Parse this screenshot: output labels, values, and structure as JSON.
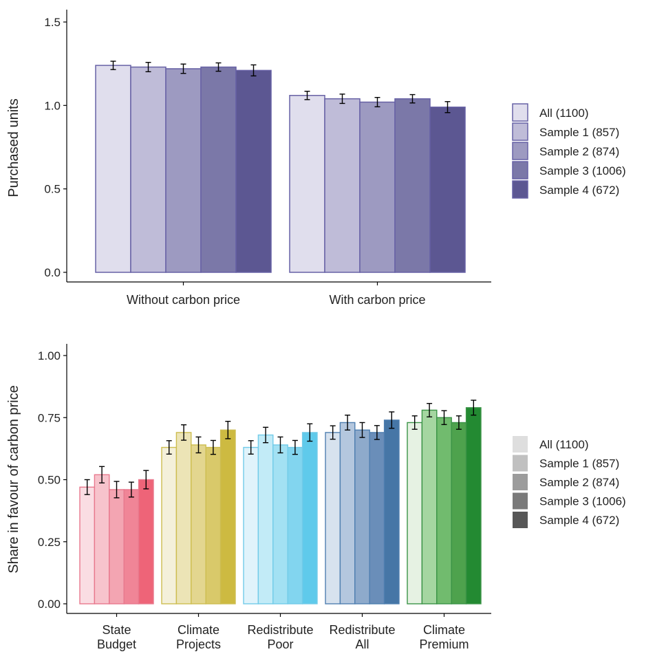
{
  "chart_data": [
    {
      "type": "bar",
      "title": "",
      "xlabel": "",
      "ylabel": "Purchased units",
      "ylim": [
        0,
        1.5
      ],
      "yticks": [
        "0.0",
        "0.5",
        "1.0",
        "1.5"
      ],
      "grid": false,
      "legend_position": "right",
      "categories": [
        "Without carbon price",
        "With carbon price"
      ],
      "series": [
        {
          "name": "All (1100)",
          "values": [
            1.24,
            1.06
          ],
          "error": [
            0.025,
            0.025
          ]
        },
        {
          "name": "Sample 1 (857)",
          "values": [
            1.23,
            1.04
          ],
          "error": [
            0.028,
            0.028
          ]
        },
        {
          "name": "Sample 2 (874)",
          "values": [
            1.22,
            1.02
          ],
          "error": [
            0.028,
            0.028
          ]
        },
        {
          "name": "Sample 3 (1006)",
          "values": [
            1.23,
            1.04
          ],
          "error": [
            0.025,
            0.025
          ]
        },
        {
          "name": "Sample 4 (672)",
          "values": [
            1.21,
            0.99
          ],
          "error": [
            0.033,
            0.033
          ]
        }
      ],
      "colors": {
        "fills": [
          "#e0deed",
          "#bfbcd8",
          "#9d9ac1",
          "#7b78a8",
          "#5c5792"
        ],
        "stroke": "#6761a5"
      }
    },
    {
      "type": "bar",
      "title": "",
      "xlabel": "",
      "ylabel": "Share in favour of carbon price",
      "ylim": [
        0,
        1.0
      ],
      "yticks": [
        "0.00",
        "0.25",
        "0.50",
        "0.75",
        "1.00"
      ],
      "grid": false,
      "legend_position": "right",
      "categories": [
        "State Budget",
        "Climate Projects",
        "Redistribute Poor",
        "Redistribute All",
        "Climate Premium"
      ],
      "category_lines": [
        [
          "State",
          "Budget"
        ],
        [
          "Climate",
          "Projects"
        ],
        [
          "Redistribute",
          "Poor"
        ],
        [
          "Redistribute",
          "All"
        ],
        [
          "Climate",
          "Premium"
        ]
      ],
      "series": [
        {
          "name": "All (1100)",
          "values": [
            0.47,
            0.63,
            0.63,
            0.69,
            0.73
          ],
          "error": [
            0.03,
            0.027,
            0.027,
            0.027,
            0.027
          ]
        },
        {
          "name": "Sample 1 (857)",
          "values": [
            0.52,
            0.69,
            0.68,
            0.73,
            0.78
          ],
          "error": [
            0.033,
            0.031,
            0.031,
            0.03,
            0.027
          ]
        },
        {
          "name": "Sample 2 (874)",
          "values": [
            0.46,
            0.64,
            0.64,
            0.7,
            0.75
          ],
          "error": [
            0.033,
            0.032,
            0.032,
            0.03,
            0.028
          ]
        },
        {
          "name": "Sample 3 (1006)",
          "values": [
            0.46,
            0.63,
            0.63,
            0.69,
            0.73
          ],
          "error": [
            0.03,
            0.028,
            0.028,
            0.028,
            0.027
          ]
        },
        {
          "name": "Sample 4 (672)",
          "values": [
            0.5,
            0.7,
            0.69,
            0.74,
            0.79
          ],
          "error": [
            0.037,
            0.035,
            0.035,
            0.033,
            0.03
          ]
        }
      ],
      "colors": {
        "group_fills": [
          [
            "#fadde3",
            "#f7c3cc",
            "#f3a5b2",
            "#f08597",
            "#ee6478"
          ],
          [
            "#f4f0da",
            "#ece4b6",
            "#e3d68f",
            "#d9c96a",
            "#cdba41"
          ],
          [
            "#e0f3fb",
            "#c2ebf7",
            "#a3e1f3",
            "#82d5ef",
            "#5fcaeb"
          ],
          [
            "#d7e2ee",
            "#b4c7de",
            "#8eaacb",
            "#6a8eb9",
            "#4676a6"
          ],
          [
            "#e6f2e3",
            "#a5d6a1",
            "#71bb6e",
            "#4ea24d",
            "#238a32"
          ]
        ],
        "group_strokes": [
          "#e8788d",
          "#cdbd50",
          "#72cbe8",
          "#4f7fb0",
          "#3a9346"
        ],
        "legend_fills": [
          "#dedede",
          "#c0c0c0",
          "#9c9c9c",
          "#7a7a7a",
          "#575757"
        ]
      }
    }
  ]
}
